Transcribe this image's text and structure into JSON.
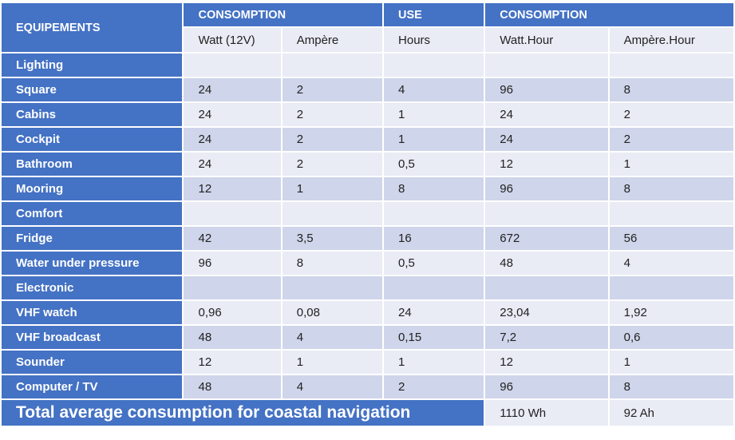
{
  "header": {
    "equipements": "EQUIPEMENTS",
    "consumption1": "CONSOMPTION",
    "use": "USE",
    "consumption2": "CONSOMPTION",
    "sub": [
      "Watt (12V)",
      "Ampère",
      "Hours",
      "Watt.Hour",
      "Ampère.Hour"
    ]
  },
  "rows": [
    {
      "label": "Lighting",
      "cells": [
        "",
        "",
        "",
        "",
        ""
      ]
    },
    {
      "label": "Square",
      "cells": [
        "24",
        "2",
        "4",
        "96",
        "8"
      ]
    },
    {
      "label": "Cabins",
      "cells": [
        "24",
        "2",
        "1",
        "24",
        "2"
      ]
    },
    {
      "label": "Cockpit",
      "cells": [
        "24",
        "2",
        "1",
        "24",
        "2"
      ]
    },
    {
      "label": "Bathroom",
      "cells": [
        "24",
        "2",
        "0,5",
        "12",
        "1"
      ]
    },
    {
      "label": "Mooring",
      "cells": [
        "12",
        "1",
        "8",
        "96",
        "8"
      ]
    },
    {
      "label": "Comfort",
      "cells": [
        "",
        "",
        "",
        "",
        ""
      ]
    },
    {
      "label": "Fridge",
      "cells": [
        "42",
        "3,5",
        "16",
        "672",
        "56"
      ]
    },
    {
      "label": "Water under pressure",
      "cells": [
        "96",
        "8",
        "0,5",
        "48",
        "4"
      ]
    },
    {
      "label": "Electronic",
      "cells": [
        "",
        "",
        "",
        "",
        ""
      ]
    },
    {
      "label": "VHF watch",
      "cells": [
        "0,96",
        "0,08",
        "24",
        "23,04",
        "1,92"
      ]
    },
    {
      "label": "VHF broadcast",
      "cells": [
        "48",
        "4",
        "0,15",
        "7,2",
        "0,6"
      ]
    },
    {
      "label": "Sounder",
      "cells": [
        "12",
        "1",
        "1",
        "12",
        "1"
      ]
    },
    {
      "label": "Computer / TV",
      "cells": [
        "48",
        "4",
        "2",
        "96",
        "8"
      ]
    }
  ],
  "total": {
    "label": "Total average consumption for coastal navigation",
    "watt_hour": "1110 Wh",
    "ampere_hour": "92 Ah"
  }
}
